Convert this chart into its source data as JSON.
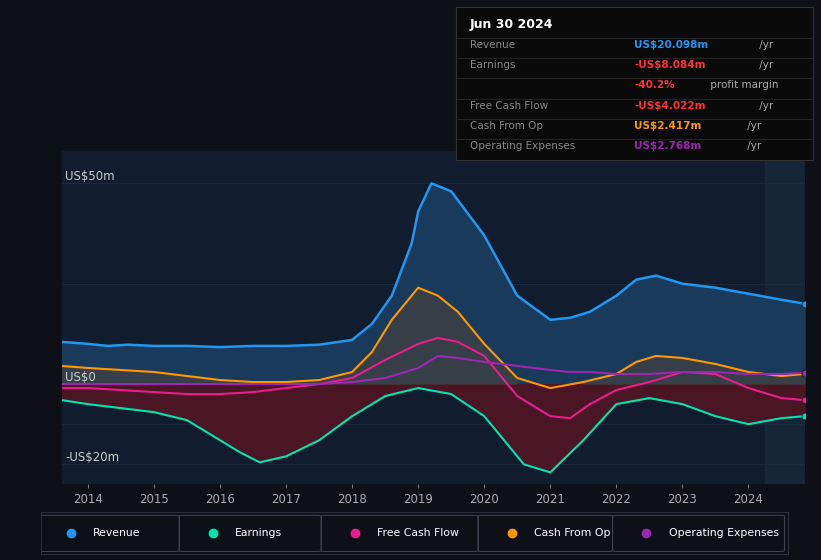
{
  "bg_color": "#0d1117",
  "plot_bg_color": "#111d2e",
  "xlim": [
    2013.6,
    2024.85
  ],
  "ylim": [
    -25,
    58
  ],
  "xtick_years": [
    2014,
    2015,
    2016,
    2017,
    2018,
    2019,
    2020,
    2021,
    2022,
    2023,
    2024
  ],
  "colors": {
    "revenue": "#2196f3",
    "earnings": "#00e5b0",
    "free_cash_flow": "#e91e8c",
    "cash_from_op": "#ff9800",
    "operating_expenses": "#9c27b0"
  },
  "fill_colors": {
    "revenue": "#1a3a5c",
    "earnings_neg": "#4a1525",
    "cash_from_op": "#404040"
  },
  "revenue": {
    "x": [
      2013.6,
      2014.0,
      2014.3,
      2014.6,
      2015.0,
      2015.5,
      2016.0,
      2016.5,
      2017.0,
      2017.5,
      2018.0,
      2018.3,
      2018.6,
      2018.9,
      2019.0,
      2019.2,
      2019.5,
      2020.0,
      2020.5,
      2021.0,
      2021.3,
      2021.6,
      2022.0,
      2022.3,
      2022.6,
      2023.0,
      2023.5,
      2024.0,
      2024.5,
      2024.85
    ],
    "y": [
      10.5,
      10.0,
      9.5,
      9.8,
      9.5,
      9.5,
      9.2,
      9.5,
      9.5,
      9.8,
      11.0,
      15.0,
      22.0,
      35.0,
      43.0,
      50.0,
      48.0,
      37.0,
      22.0,
      16.0,
      16.5,
      18.0,
      22.0,
      26.0,
      27.0,
      25.0,
      24.0,
      22.5,
      21.0,
      20.0
    ]
  },
  "earnings": {
    "x": [
      2013.6,
      2014.0,
      2014.5,
      2015.0,
      2015.5,
      2016.0,
      2016.3,
      2016.6,
      2017.0,
      2017.5,
      2018.0,
      2018.5,
      2019.0,
      2019.5,
      2020.0,
      2020.3,
      2020.6,
      2021.0,
      2021.5,
      2022.0,
      2022.5,
      2023.0,
      2023.5,
      2024.0,
      2024.5,
      2024.85
    ],
    "y": [
      -4.0,
      -5.0,
      -6.0,
      -7.0,
      -9.0,
      -14.0,
      -17.0,
      -19.5,
      -18.0,
      -14.0,
      -8.0,
      -3.0,
      -1.0,
      -2.5,
      -8.0,
      -14.0,
      -20.0,
      -22.0,
      -14.0,
      -5.0,
      -3.5,
      -5.0,
      -8.0,
      -10.0,
      -8.5,
      -8.0
    ]
  },
  "free_cash_flow": {
    "x": [
      2013.6,
      2014.0,
      2014.5,
      2015.0,
      2015.5,
      2016.0,
      2016.5,
      2017.0,
      2017.5,
      2018.0,
      2018.5,
      2019.0,
      2019.3,
      2019.6,
      2020.0,
      2020.5,
      2021.0,
      2021.3,
      2021.6,
      2022.0,
      2022.5,
      2023.0,
      2023.5,
      2024.0,
      2024.5,
      2024.85
    ],
    "y": [
      -1.0,
      -1.0,
      -1.5,
      -2.0,
      -2.5,
      -2.5,
      -2.0,
      -1.0,
      0.0,
      1.5,
      6.0,
      10.0,
      11.5,
      10.5,
      7.0,
      -3.0,
      -8.0,
      -8.5,
      -5.0,
      -1.5,
      0.5,
      3.0,
      2.5,
      -1.0,
      -3.5,
      -4.0
    ]
  },
  "cash_from_op": {
    "x": [
      2013.6,
      2014.0,
      2014.5,
      2015.0,
      2015.5,
      2016.0,
      2016.5,
      2017.0,
      2017.5,
      2018.0,
      2018.3,
      2018.6,
      2018.9,
      2019.0,
      2019.3,
      2019.6,
      2020.0,
      2020.5,
      2021.0,
      2021.5,
      2022.0,
      2022.3,
      2022.6,
      2023.0,
      2023.5,
      2024.0,
      2024.5,
      2024.85
    ],
    "y": [
      4.5,
      4.0,
      3.5,
      3.0,
      2.0,
      1.0,
      0.5,
      0.5,
      1.0,
      3.0,
      8.0,
      16.0,
      22.0,
      24.0,
      22.0,
      18.0,
      10.0,
      1.5,
      -1.0,
      0.5,
      2.5,
      5.5,
      7.0,
      6.5,
      5.0,
      3.0,
      2.0,
      2.5
    ]
  },
  "operating_expenses": {
    "x": [
      2013.6,
      2014.0,
      2014.5,
      2015.0,
      2015.5,
      2016.0,
      2016.5,
      2017.0,
      2017.5,
      2018.0,
      2018.5,
      2019.0,
      2019.3,
      2019.6,
      2020.0,
      2020.5,
      2021.0,
      2021.3,
      2021.6,
      2022.0,
      2022.5,
      2023.0,
      2023.5,
      2024.0,
      2024.5,
      2024.85
    ],
    "y": [
      0.0,
      0.0,
      0.0,
      0.0,
      0.0,
      0.0,
      0.0,
      0.0,
      0.0,
      0.5,
      1.5,
      4.0,
      7.0,
      6.5,
      5.5,
      4.5,
      3.5,
      3.0,
      3.0,
      2.5,
      2.5,
      3.0,
      3.0,
      2.5,
      2.5,
      2.8
    ]
  },
  "info_box": {
    "title": "Jun 30 2024",
    "rows": [
      {
        "label": "Revenue",
        "value": "US$20.098m",
        "suffix": " /yr",
        "label_color": "#888888",
        "value_color": "#2196f3"
      },
      {
        "label": "Earnings",
        "value": "-US$8.084m",
        "suffix": " /yr",
        "label_color": "#888888",
        "value_color": "#ff3333"
      },
      {
        "label": "",
        "value": "-40.2%",
        "suffix": " profit margin",
        "label_color": "#888888",
        "value_color": "#ff3333"
      },
      {
        "label": "Free Cash Flow",
        "value": "-US$4.022m",
        "suffix": " /yr",
        "label_color": "#888888",
        "value_color": "#ff3333"
      },
      {
        "label": "Cash From Op",
        "value": "US$2.417m",
        "suffix": " /yr",
        "label_color": "#888888",
        "value_color": "#ff9800"
      },
      {
        "label": "Operating Expenses",
        "value": "US$2.768m",
        "suffix": " /yr",
        "label_color": "#888888",
        "value_color": "#9c27b0"
      }
    ]
  },
  "legend": [
    {
      "label": "Revenue",
      "color": "#2196f3"
    },
    {
      "label": "Earnings",
      "color": "#00e5b0"
    },
    {
      "label": "Free Cash Flow",
      "color": "#e91e8c"
    },
    {
      "label": "Cash From Op",
      "color": "#ff9800"
    },
    {
      "label": "Operating Expenses",
      "color": "#9c27b0"
    }
  ],
  "ytick_labels": [
    "US$50m",
    "US$0",
    "-US$20m"
  ],
  "ytick_values": [
    50,
    0,
    -20
  ]
}
